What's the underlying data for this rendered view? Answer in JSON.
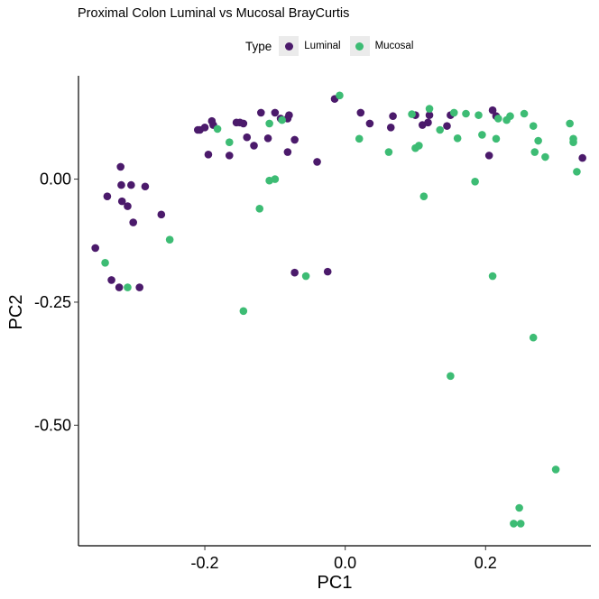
{
  "chart_data": {
    "type": "scatter",
    "title": "Proximal Colon Luminal vs Mucosal BrayCurtis",
    "xlabel": "PC1",
    "ylabel": "PC2",
    "xlim": [
      -0.38,
      0.35
    ],
    "ylim": [
      -0.745,
      0.21
    ],
    "x_ticks": [
      -0.2,
      0.0,
      0.2
    ],
    "x_tick_labels": [
      "-0.2",
      "0.0",
      "0.2"
    ],
    "y_ticks": [
      0.0,
      -0.25,
      -0.5
    ],
    "y_tick_labels": [
      "0.00",
      "-0.25",
      "-0.50"
    ],
    "grid": false,
    "legend": {
      "title": "Type",
      "position": "top"
    },
    "series": [
      {
        "name": "Luminal",
        "color": "#4b1a6b",
        "points": [
          [
            -0.356,
            -0.14
          ],
          [
            -0.339,
            -0.035
          ],
          [
            -0.333,
            -0.205
          ],
          [
            -0.322,
            -0.22
          ],
          [
            -0.32,
            0.025
          ],
          [
            -0.319,
            -0.012
          ],
          [
            -0.318,
            -0.045
          ],
          [
            -0.31,
            -0.055
          ],
          [
            -0.305,
            -0.012
          ],
          [
            -0.302,
            -0.088
          ],
          [
            -0.293,
            -0.22
          ],
          [
            -0.285,
            -0.015
          ],
          [
            -0.262,
            -0.072
          ],
          [
            -0.21,
            0.1
          ],
          [
            -0.207,
            0.1
          ],
          [
            -0.2,
            0.105
          ],
          [
            -0.195,
            0.05
          ],
          [
            -0.19,
            0.118
          ],
          [
            -0.188,
            0.11
          ],
          [
            -0.165,
            0.048
          ],
          [
            -0.155,
            0.115
          ],
          [
            -0.15,
            0.115
          ],
          [
            -0.145,
            0.113
          ],
          [
            -0.14,
            0.085
          ],
          [
            -0.13,
            0.068
          ],
          [
            -0.12,
            0.135
          ],
          [
            -0.11,
            0.083
          ],
          [
            -0.1,
            0.135
          ],
          [
            -0.092,
            0.123
          ],
          [
            -0.082,
            0.123
          ],
          [
            -0.08,
            0.13
          ],
          [
            -0.082,
            0.055
          ],
          [
            -0.072,
            0.08
          ],
          [
            -0.072,
            -0.19
          ],
          [
            -0.04,
            0.035
          ],
          [
            -0.025,
            -0.188
          ],
          [
            -0.015,
            0.163
          ],
          [
            0.022,
            0.135
          ],
          [
            0.035,
            0.113
          ],
          [
            0.068,
            0.128
          ],
          [
            0.065,
            0.105
          ],
          [
            0.1,
            0.13
          ],
          [
            0.11,
            0.11
          ],
          [
            0.118,
            0.115
          ],
          [
            0.12,
            0.13
          ],
          [
            0.145,
            0.108
          ],
          [
            0.15,
            0.13
          ],
          [
            0.205,
            0.048
          ],
          [
            0.21,
            0.14
          ],
          [
            0.215,
            0.128
          ],
          [
            0.338,
            0.043
          ]
        ]
      },
      {
        "name": "Mucosal",
        "color": "#3dbc74",
        "points": [
          [
            -0.342,
            -0.17
          ],
          [
            -0.31,
            -0.22
          ],
          [
            -0.25,
            -0.123
          ],
          [
            -0.182,
            0.102
          ],
          [
            -0.165,
            0.075
          ],
          [
            -0.145,
            -0.268
          ],
          [
            -0.122,
            -0.06
          ],
          [
            -0.108,
            -0.003
          ],
          [
            -0.1,
            0.0
          ],
          [
            -0.108,
            0.113
          ],
          [
            -0.09,
            0.12
          ],
          [
            -0.056,
            -0.197
          ],
          [
            -0.008,
            0.17
          ],
          [
            0.02,
            0.082
          ],
          [
            0.062,
            0.055
          ],
          [
            0.095,
            0.132
          ],
          [
            0.1,
            0.063
          ],
          [
            0.105,
            0.068
          ],
          [
            0.112,
            -0.035
          ],
          [
            0.12,
            0.143
          ],
          [
            0.135,
            0.1
          ],
          [
            0.15,
            -0.4
          ],
          [
            0.155,
            0.135
          ],
          [
            0.16,
            0.083
          ],
          [
            0.172,
            0.133
          ],
          [
            0.185,
            -0.005
          ],
          [
            0.19,
            0.13
          ],
          [
            0.195,
            0.09
          ],
          [
            0.21,
            -0.197
          ],
          [
            0.215,
            0.082
          ],
          [
            0.218,
            0.123
          ],
          [
            0.23,
            0.12
          ],
          [
            0.235,
            0.128
          ],
          [
            0.24,
            -0.7
          ],
          [
            0.248,
            -0.668
          ],
          [
            0.25,
            -0.7
          ],
          [
            0.255,
            0.133
          ],
          [
            0.268,
            -0.322
          ],
          [
            0.268,
            0.108
          ],
          [
            0.27,
            0.055
          ],
          [
            0.275,
            0.078
          ],
          [
            0.285,
            0.045
          ],
          [
            0.3,
            -0.59
          ],
          [
            0.32,
            0.113
          ],
          [
            0.325,
            0.082
          ],
          [
            0.325,
            0.075
          ],
          [
            0.33,
            0.015
          ]
        ]
      }
    ]
  }
}
